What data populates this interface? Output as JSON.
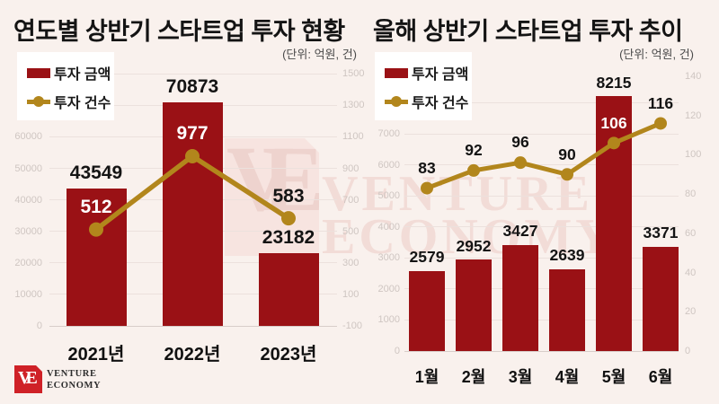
{
  "page": {
    "background": "#f9f1ed"
  },
  "watermark": {
    "monogram": "VE",
    "line1": "VENTURE",
    "line2": "ECONOMY"
  },
  "logo": {
    "monogram": "VE",
    "line1": "VENTURE",
    "line2": "ECONOMY"
  },
  "colors": {
    "bar": "#9a1115",
    "line": "#b2861c",
    "background": "#f9f1ed",
    "logo_red": "#cf2127"
  },
  "chart_data": [
    {
      "type": "bar",
      "title": "연도별 상반기 스타트업 투자 현황",
      "unit_note": "(단위: 억원, 건)",
      "legend": [
        "투자 금액",
        "투자 건수"
      ],
      "categories": [
        "2021년",
        "2022년",
        "2023년"
      ],
      "series": [
        {
          "name": "투자 금액",
          "type": "bar",
          "axis": "left",
          "values": [
            43549,
            70873,
            23182
          ]
        },
        {
          "name": "투자 건수",
          "type": "line",
          "axis": "right",
          "values": [
            512,
            977,
            583
          ]
        }
      ],
      "left_axis": {
        "min": 0,
        "max": 80000,
        "tick_step": 10000,
        "visible_ticks": [
          "0",
          "10000",
          "20000",
          "30000",
          "40000",
          "50000",
          "60000"
        ]
      },
      "right_axis": {
        "min": -100,
        "max": 1500,
        "tick_step": 200,
        "visible_ticks": [
          "-100",
          "100",
          "300",
          "500",
          "700",
          "900",
          "1100",
          "1300",
          "1500"
        ]
      },
      "grid": true,
      "legend_position": "top-left"
    },
    {
      "type": "bar",
      "title": "올해 상반기 스타트업 투자 추이",
      "unit_note": "(단위: 억원, 건)",
      "legend": [
        "투자 금액",
        "투자 건수"
      ],
      "categories": [
        "1월",
        "2월",
        "3월",
        "4월",
        "5월",
        "6월"
      ],
      "series": [
        {
          "name": "투자 금액",
          "type": "bar",
          "axis": "left",
          "values": [
            2579,
            2952,
            3427,
            2639,
            8215,
            3371
          ]
        },
        {
          "name": "투자 건수",
          "type": "line",
          "axis": "right",
          "values": [
            83,
            92,
            96,
            90,
            106,
            116
          ]
        }
      ],
      "left_axis": {
        "min": 0,
        "max": 8000,
        "tick_step": 1000,
        "visible_ticks": [
          "0",
          "1000",
          "2000",
          "3000",
          "4000",
          "5000",
          "6000",
          "7000"
        ]
      },
      "right_axis": {
        "min": 0,
        "max": 140,
        "tick_step": 20,
        "visible_ticks": [
          "0",
          "20",
          "40",
          "60",
          "80",
          "100",
          "120",
          "140"
        ]
      },
      "grid": true,
      "legend_position": "top-left"
    }
  ]
}
